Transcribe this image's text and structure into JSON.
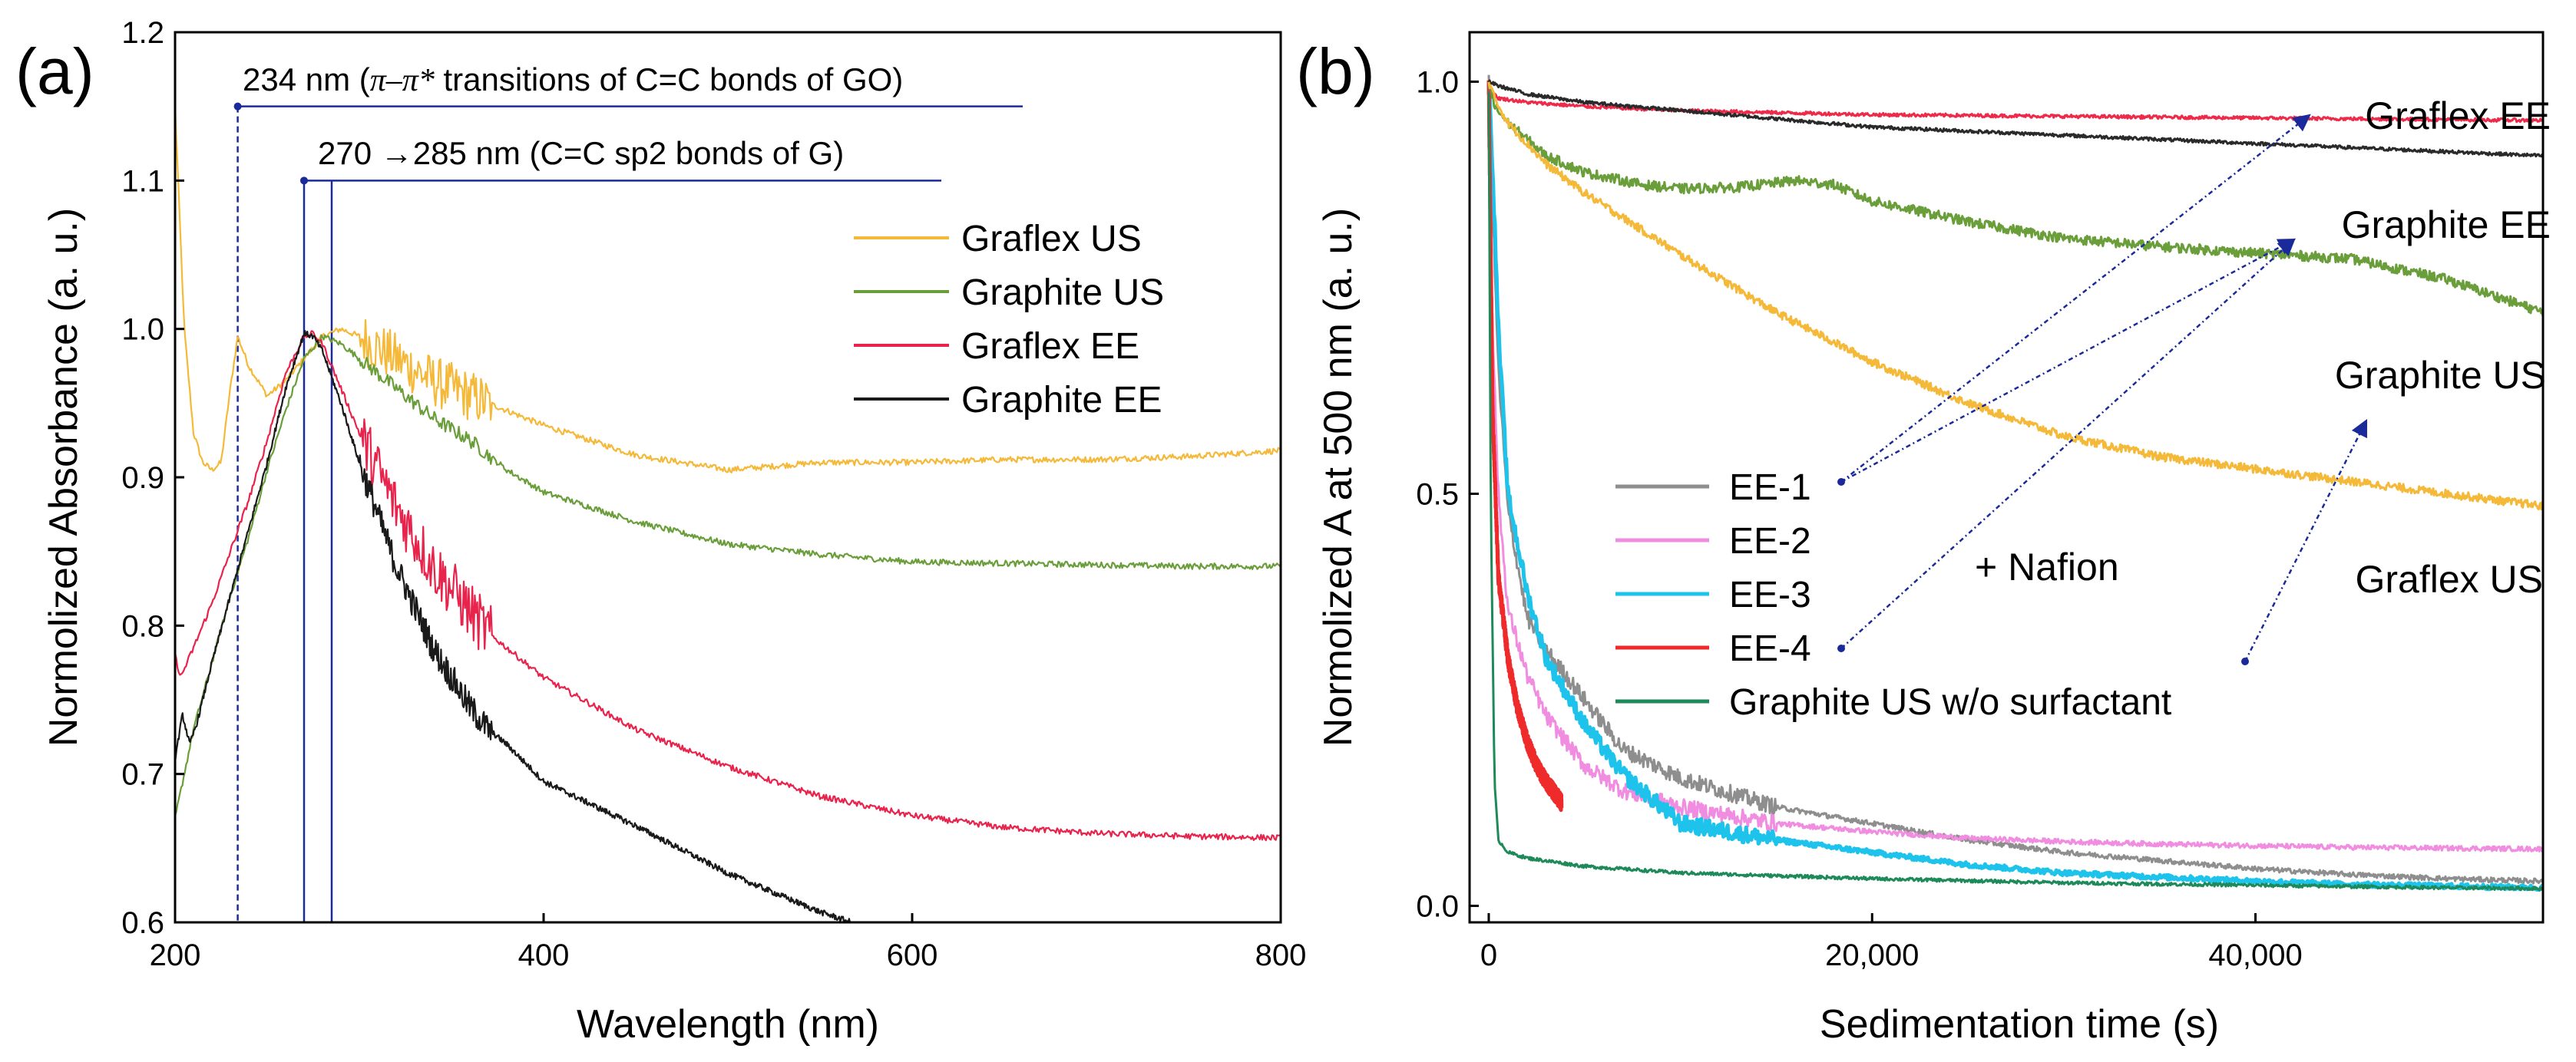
{
  "chart_data": [
    {
      "panel_label": "(a)",
      "type": "line",
      "xlabel": "Wavelength (nm)",
      "ylabel": "Normolized Absorbance (a. u.)",
      "xlim": [
        200,
        800
      ],
      "ylim": [
        0.6,
        1.2
      ],
      "x_ticks": [
        200,
        400,
        600,
        800
      ],
      "x_tick_labels": [
        "200",
        "400",
        "600",
        "800"
      ],
      "y_ticks": [
        0.6,
        0.7,
        0.8,
        0.9,
        1.0,
        1.1,
        1.2
      ],
      "y_tick_labels": [
        "0.6",
        "0.7",
        "0.8",
        "0.9",
        "1.0",
        "1.1",
        "1.2"
      ],
      "legend_position": "upper-right",
      "series": [
        {
          "name": "Graflex US",
          "color": "#f5b93a",
          "x": [
            200,
            205,
            210,
            215,
            220,
            225,
            230,
            234,
            240,
            250,
            260,
            270,
            280,
            290,
            300,
            320,
            340,
            360,
            370,
            380,
            400,
            450,
            500,
            550,
            600,
            650,
            700,
            750,
            800
          ],
          "y": [
            1.15,
            1.0,
            0.93,
            0.91,
            0.905,
            0.91,
            0.96,
            0.995,
            0.975,
            0.955,
            0.965,
            0.98,
            0.995,
            1.0,
            0.995,
            0.98,
            0.965,
            0.955,
            0.95,
            0.945,
            0.935,
            0.915,
            0.905,
            0.91,
            0.91,
            0.912,
            0.912,
            0.914,
            0.918
          ]
        },
        {
          "name": "Graphite US",
          "color": "#6a9e3a",
          "x": [
            200,
            205,
            210,
            220,
            230,
            240,
            250,
            260,
            270,
            280,
            290,
            300,
            320,
            340,
            360,
            370,
            380,
            400,
            450,
            500,
            550,
            600,
            650,
            700,
            750,
            800
          ],
          "y": [
            0.67,
            0.7,
            0.73,
            0.775,
            0.82,
            0.86,
            0.905,
            0.945,
            0.98,
            0.995,
            0.99,
            0.98,
            0.96,
            0.94,
            0.925,
            0.915,
            0.905,
            0.89,
            0.87,
            0.855,
            0.848,
            0.843,
            0.842,
            0.841,
            0.84,
            0.84
          ]
        },
        {
          "name": "Graflex EE",
          "color": "#e8244c",
          "x": [
            200,
            203,
            210,
            220,
            230,
            240,
            250,
            260,
            270,
            275,
            280,
            290,
            300,
            320,
            340,
            360,
            370,
            380,
            400,
            450,
            500,
            550,
            600,
            650,
            700,
            750,
            800
          ],
          "y": [
            0.78,
            0.765,
            0.785,
            0.815,
            0.85,
            0.885,
            0.925,
            0.97,
            0.995,
            0.997,
            0.99,
            0.96,
            0.93,
            0.88,
            0.84,
            0.81,
            0.795,
            0.785,
            0.765,
            0.73,
            0.705,
            0.685,
            0.672,
            0.664,
            0.66,
            0.658,
            0.657
          ]
        },
        {
          "name": "Graphite EE",
          "color": "#1a1a1a",
          "x": [
            200,
            204,
            208,
            212,
            220,
            230,
            240,
            250,
            260,
            270,
            275,
            280,
            290,
            300,
            320,
            340,
            360,
            370,
            380,
            400,
            450,
            500,
            550,
            567
          ],
          "y": [
            0.71,
            0.74,
            0.72,
            0.735,
            0.775,
            0.82,
            0.865,
            0.91,
            0.96,
            0.997,
            0.995,
            0.985,
            0.95,
            0.91,
            0.84,
            0.785,
            0.745,
            0.73,
            0.72,
            0.695,
            0.665,
            0.633,
            0.607,
            0.6
          ]
        }
      ],
      "annotations": [
        {
          "id": "go",
          "prefix": "234 nm (",
          "symbol": "π–π*",
          "suffix": " transitions of C=C bonds of GO)",
          "x_nm": 234,
          "y_level": 1.15
        },
        {
          "id": "g",
          "text": "270 →285 nm (C=C sp2 bonds of G)",
          "x_nm_from": 270,
          "x_nm_to": 285,
          "y_level": 1.1
        }
      ]
    },
    {
      "panel_label": "(b)",
      "type": "line",
      "xlabel": "Sedimentation time (s)",
      "ylabel": "Normolized A at 500 nm (a. u.)",
      "xlim": [
        -1000,
        55000
      ],
      "ylim": [
        -0.02,
        1.06
      ],
      "x_ticks": [
        0,
        20000,
        40000
      ],
      "x_tick_labels": [
        "0",
        "20,000",
        "40,000"
      ],
      "y_ticks": [
        0.0,
        0.5,
        1.0
      ],
      "y_tick_labels": [
        "0.0",
        "0.5",
        "1.0"
      ],
      "legend_position": "lower-left",
      "series": [
        {
          "name": "EE-1",
          "color": "#8e8e8e",
          "in_legend": true,
          "x": [
            0,
            200,
            500,
            1000,
            2000,
            3000,
            5000,
            7000,
            10000,
            15000,
            20000,
            25000,
            30000,
            35000,
            40000,
            45000,
            50000,
            55000
          ],
          "y": [
            1.0,
            0.85,
            0.65,
            0.48,
            0.35,
            0.31,
            0.25,
            0.19,
            0.155,
            0.12,
            0.1,
            0.08,
            0.065,
            0.055,
            0.045,
            0.038,
            0.033,
            0.03
          ]
        },
        {
          "name": "EE-2",
          "color": "#f08de0",
          "in_legend": true,
          "x": [
            0,
            200,
            500,
            1000,
            2000,
            3000,
            5000,
            7000,
            10000,
            15000,
            20000,
            25000,
            30000,
            35000,
            40000,
            45000,
            50000,
            55000
          ],
          "y": [
            1.0,
            0.7,
            0.5,
            0.36,
            0.28,
            0.23,
            0.17,
            0.14,
            0.12,
            0.1,
            0.09,
            0.082,
            0.078,
            0.075,
            0.073,
            0.071,
            0.07,
            0.069
          ]
        },
        {
          "name": "EE-3",
          "color": "#1ec3ec",
          "in_legend": true,
          "x": [
            0,
            200,
            500,
            1000,
            2000,
            3000,
            5000,
            7000,
            10000,
            15000,
            20000,
            25000,
            30000,
            35000,
            40000,
            45000,
            50000,
            55000
          ],
          "y": [
            1.0,
            0.9,
            0.7,
            0.5,
            0.38,
            0.3,
            0.22,
            0.16,
            0.1,
            0.08,
            0.065,
            0.05,
            0.04,
            0.035,
            0.03,
            0.026,
            0.024,
            0.022
          ]
        },
        {
          "name": "EE-4",
          "color": "#ee2a2a",
          "in_legend": true,
          "x": [
            0,
            200,
            500,
            1000,
            1500,
            2000,
            2500,
            3000,
            3500,
            3800
          ],
          "y": [
            1.0,
            0.6,
            0.4,
            0.3,
            0.24,
            0.2,
            0.17,
            0.15,
            0.135,
            0.125
          ]
        },
        {
          "name": "Graphite US w/o surfactant",
          "color": "#1e8a5a",
          "in_legend": true,
          "x": [
            0,
            100,
            300,
            500,
            1000,
            2000,
            5000,
            10000,
            20000,
            30000,
            40000,
            50000,
            55000
          ],
          "y": [
            1.0,
            0.5,
            0.15,
            0.08,
            0.065,
            0.058,
            0.048,
            0.04,
            0.033,
            0.028,
            0.025,
            0.022,
            0.021
          ]
        },
        {
          "name": "Graflex EE",
          "color": "#ee2a4a",
          "in_legend": false,
          "x": [
            0,
            500,
            2000,
            5000,
            10000,
            20000,
            30000,
            40000,
            50000,
            55000
          ],
          "y": [
            0.99,
            0.98,
            0.975,
            0.97,
            0.965,
            0.96,
            0.958,
            0.956,
            0.954,
            0.953
          ]
        },
        {
          "name": "Graphite EE",
          "color": "#2a2a2a",
          "in_legend": false,
          "x": [
            0,
            500,
            2000,
            5000,
            10000,
            15000,
            20000,
            30000,
            40000,
            50000,
            55000
          ],
          "y": [
            1.0,
            0.995,
            0.985,
            0.975,
            0.965,
            0.955,
            0.945,
            0.935,
            0.925,
            0.915,
            0.91
          ]
        },
        {
          "name": "Graphite US",
          "color": "#6a9e3a",
          "in_legend": false,
          "x": [
            0,
            300,
            1000,
            3000,
            5000,
            8000,
            10000,
            13000,
            16000,
            18000,
            20000,
            25000,
            30000,
            35000,
            40000,
            45000,
            50000,
            55000
          ],
          "y": [
            1.0,
            0.97,
            0.95,
            0.91,
            0.89,
            0.875,
            0.87,
            0.872,
            0.88,
            0.875,
            0.855,
            0.83,
            0.81,
            0.8,
            0.792,
            0.785,
            0.76,
            0.72
          ]
        },
        {
          "name": "Graflex US",
          "color": "#f5b93a",
          "in_legend": false,
          "x": [
            0,
            300,
            1000,
            3000,
            5000,
            8000,
            10000,
            15000,
            20000,
            25000,
            30000,
            35000,
            40000,
            45000,
            50000,
            55000
          ],
          "y": [
            1.0,
            0.98,
            0.95,
            0.9,
            0.865,
            0.82,
            0.79,
            0.72,
            0.66,
            0.61,
            0.57,
            0.545,
            0.53,
            0.515,
            0.5,
            0.485
          ]
        }
      ],
      "curve_labels": [
        "Graflex EE",
        "Graphite EE",
        "Graphite US",
        "Graflex US"
      ],
      "annotation_text": "+ Nafion"
    }
  ]
}
